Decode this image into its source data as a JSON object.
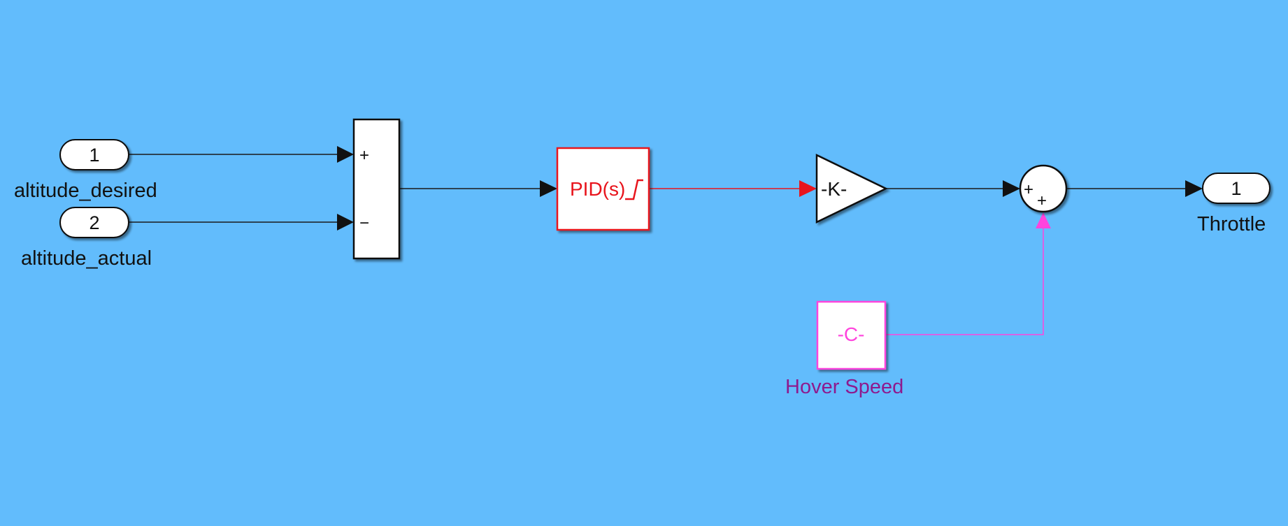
{
  "colors": {
    "background": "#62bcfc",
    "signal": "#1a1a1a",
    "pid": "#e8141c",
    "constant": "#ff44dd",
    "constant_label": "#8e1a8e"
  },
  "inports": [
    {
      "number": "1",
      "name": "altitude_desired"
    },
    {
      "number": "2",
      "name": "altitude_actual"
    }
  ],
  "error_sum": {
    "signs": [
      "+",
      "−"
    ]
  },
  "pid": {
    "label": "PID(s)"
  },
  "gain": {
    "label": "-K-"
  },
  "output_sum": {
    "signs": [
      "+",
      "+"
    ]
  },
  "constant": {
    "label": "-C-",
    "name": "Hover Speed"
  },
  "outport": {
    "number": "1",
    "name": "Throttle"
  }
}
